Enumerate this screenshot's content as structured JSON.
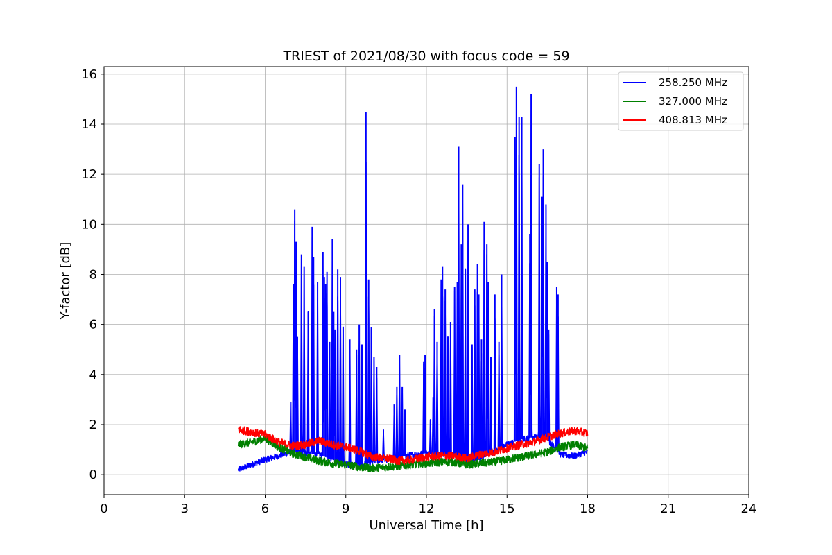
{
  "chart_data": {
    "type": "line",
    "title": "TRIEST of 2021/08/30 with focus code = 59",
    "xlabel": "Universal Time [h]",
    "ylabel": "Y-factor [dB]",
    "xlim": [
      0,
      24
    ],
    "ylim": [
      -0.8,
      16.3
    ],
    "xticks": [
      0,
      3,
      6,
      9,
      12,
      15,
      18,
      21,
      24
    ],
    "yticks": [
      0,
      2,
      4,
      6,
      8,
      10,
      12,
      14,
      16
    ],
    "grid": true,
    "legend_position": "top-right",
    "series": [
      {
        "name": "258.250 MHz",
        "color": "#0000ff",
        "baseline": [
          [
            5.0,
            0.2
          ],
          [
            5.5,
            0.4
          ],
          [
            6.0,
            0.6
          ],
          [
            6.5,
            0.75
          ],
          [
            7.0,
            0.9
          ],
          [
            7.5,
            0.85
          ],
          [
            8.0,
            0.8
          ],
          [
            8.5,
            0.6
          ],
          [
            9.0,
            0.4
          ],
          [
            9.5,
            0.35
          ],
          [
            10.0,
            0.5
          ],
          [
            10.5,
            0.6
          ],
          [
            11.0,
            0.7
          ],
          [
            11.5,
            0.8
          ],
          [
            12.0,
            0.85
          ],
          [
            12.5,
            0.8
          ],
          [
            13.0,
            0.75
          ],
          [
            13.5,
            0.5
          ],
          [
            14.0,
            0.6
          ],
          [
            14.5,
            0.9
          ],
          [
            15.0,
            1.2
          ],
          [
            15.5,
            1.4
          ],
          [
            16.0,
            1.5
          ],
          [
            16.5,
            1.4
          ],
          [
            17.0,
            0.8
          ],
          [
            17.5,
            0.75
          ],
          [
            18.0,
            0.9
          ]
        ],
        "peaks": [
          [
            6.95,
            2.9
          ],
          [
            7.05,
            7.6
          ],
          [
            7.1,
            10.6
          ],
          [
            7.15,
            9.3
          ],
          [
            7.2,
            5.5
          ],
          [
            7.35,
            8.8
          ],
          [
            7.45,
            8.3
          ],
          [
            7.6,
            6.5
          ],
          [
            7.75,
            9.9
          ],
          [
            7.8,
            8.7
          ],
          [
            7.95,
            7.7
          ],
          [
            8.15,
            8.9
          ],
          [
            8.2,
            7.9
          ],
          [
            8.25,
            7.6
          ],
          [
            8.3,
            8.1
          ],
          [
            8.4,
            5.3
          ],
          [
            8.5,
            9.4
          ],
          [
            8.55,
            6.5
          ],
          [
            8.6,
            5.8
          ],
          [
            8.7,
            8.2
          ],
          [
            8.8,
            7.9
          ],
          [
            8.9,
            5.9
          ],
          [
            9.15,
            5.4
          ],
          [
            9.4,
            5.0
          ],
          [
            9.5,
            6.0
          ],
          [
            9.6,
            5.2
          ],
          [
            9.75,
            14.5
          ],
          [
            9.85,
            7.8
          ],
          [
            9.95,
            5.9
          ],
          [
            10.05,
            4.7
          ],
          [
            10.15,
            4.3
          ],
          [
            10.4,
            1.8
          ],
          [
            10.8,
            2.8
          ],
          [
            10.9,
            3.5
          ],
          [
            11.0,
            4.8
          ],
          [
            11.1,
            3.5
          ],
          [
            11.2,
            2.6
          ],
          [
            11.9,
            4.5
          ],
          [
            11.95,
            4.8
          ],
          [
            12.15,
            2.2
          ],
          [
            12.25,
            3.1
          ],
          [
            12.3,
            6.6
          ],
          [
            12.4,
            5.3
          ],
          [
            12.55,
            7.8
          ],
          [
            12.6,
            8.3
          ],
          [
            12.7,
            7.4
          ],
          [
            12.8,
            5.5
          ],
          [
            12.9,
            6.1
          ],
          [
            13.05,
            7.5
          ],
          [
            13.15,
            7.7
          ],
          [
            13.2,
            13.1
          ],
          [
            13.3,
            9.2
          ],
          [
            13.35,
            11.6
          ],
          [
            13.45,
            8.2
          ],
          [
            13.55,
            10.0
          ],
          [
            13.7,
            5.2
          ],
          [
            13.8,
            7.4
          ],
          [
            13.9,
            8.4
          ],
          [
            13.95,
            7.2
          ],
          [
            14.05,
            5.4
          ],
          [
            14.15,
            10.1
          ],
          [
            14.25,
            9.2
          ],
          [
            14.3,
            7.7
          ],
          [
            14.4,
            4.7
          ],
          [
            14.55,
            7.2
          ],
          [
            14.7,
            5.3
          ],
          [
            14.8,
            8.0
          ],
          [
            15.3,
            13.5
          ],
          [
            15.35,
            15.5
          ],
          [
            15.45,
            14.3
          ],
          [
            15.55,
            14.3
          ],
          [
            15.85,
            9.6
          ],
          [
            15.9,
            15.2
          ],
          [
            16.05,
            1.6
          ],
          [
            16.2,
            12.4
          ],
          [
            16.3,
            11.1
          ],
          [
            16.35,
            13.0
          ],
          [
            16.45,
            10.8
          ],
          [
            16.5,
            8.5
          ],
          [
            16.55,
            5.8
          ],
          [
            16.85,
            7.5
          ],
          [
            16.9,
            7.2
          ]
        ]
      },
      {
        "name": "327.000 MHz",
        "color": "#008000",
        "baseline": [
          [
            5.0,
            1.2
          ],
          [
            5.5,
            1.3
          ],
          [
            6.0,
            1.45
          ],
          [
            6.5,
            1.1
          ],
          [
            7.0,
            0.85
          ],
          [
            7.5,
            0.7
          ],
          [
            8.0,
            0.55
          ],
          [
            8.5,
            0.45
          ],
          [
            9.0,
            0.4
          ],
          [
            9.5,
            0.3
          ],
          [
            10.0,
            0.25
          ],
          [
            10.5,
            0.3
          ],
          [
            11.0,
            0.35
          ],
          [
            11.5,
            0.4
          ],
          [
            12.0,
            0.45
          ],
          [
            12.5,
            0.5
          ],
          [
            13.0,
            0.5
          ],
          [
            13.5,
            0.4
          ],
          [
            14.0,
            0.45
          ],
          [
            14.5,
            0.5
          ],
          [
            15.0,
            0.6
          ],
          [
            15.5,
            0.7
          ],
          [
            16.0,
            0.8
          ],
          [
            16.5,
            0.9
          ],
          [
            17.0,
            1.1
          ],
          [
            17.5,
            1.2
          ],
          [
            18.0,
            1.05
          ]
        ]
      },
      {
        "name": "408.813 MHz",
        "color": "#ff0000",
        "baseline": [
          [
            5.0,
            1.8
          ],
          [
            5.5,
            1.7
          ],
          [
            6.0,
            1.6
          ],
          [
            6.5,
            1.3
          ],
          [
            7.0,
            1.15
          ],
          [
            7.5,
            1.2
          ],
          [
            8.0,
            1.35
          ],
          [
            8.5,
            1.2
          ],
          [
            9.0,
            1.1
          ],
          [
            9.5,
            0.95
          ],
          [
            10.0,
            0.7
          ],
          [
            10.5,
            0.65
          ],
          [
            11.0,
            0.55
          ],
          [
            11.5,
            0.6
          ],
          [
            12.0,
            0.7
          ],
          [
            12.5,
            0.75
          ],
          [
            13.0,
            0.75
          ],
          [
            13.5,
            0.65
          ],
          [
            14.0,
            0.8
          ],
          [
            14.5,
            0.9
          ],
          [
            15.0,
            1.05
          ],
          [
            15.5,
            1.2
          ],
          [
            16.0,
            1.3
          ],
          [
            16.5,
            1.5
          ],
          [
            17.0,
            1.65
          ],
          [
            17.5,
            1.75
          ],
          [
            18.0,
            1.65
          ]
        ]
      }
    ]
  }
}
